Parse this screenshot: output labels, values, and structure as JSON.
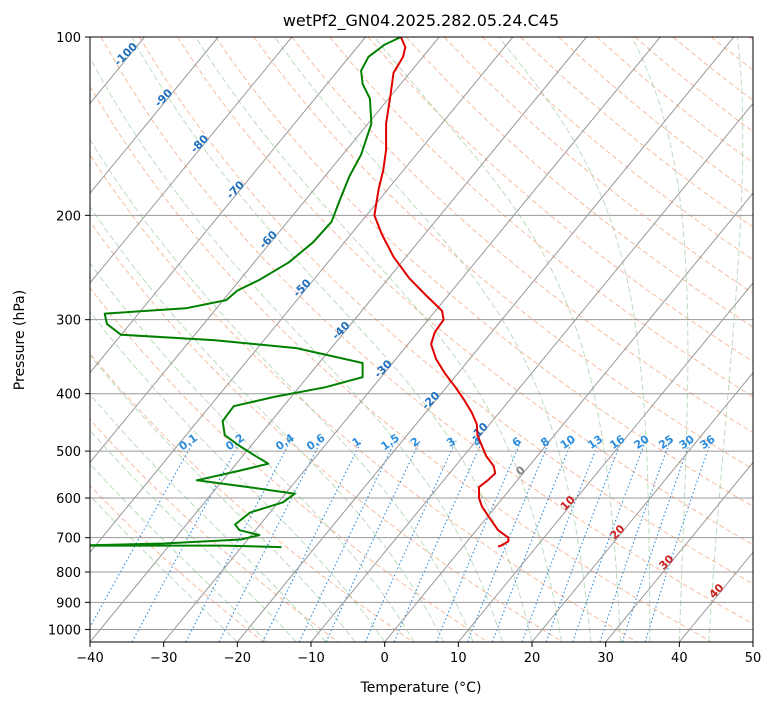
{
  "chart_data": {
    "type": "line",
    "title": "wetPf2_GN04.2025.282.05.24.C45",
    "xlabel": "Temperature (°C)",
    "ylabel": "Pressure (hPa)",
    "xlim": [
      -40,
      50
    ],
    "ylim": [
      1050,
      100
    ],
    "y_scale": "log",
    "x_ticks": [
      -40,
      -30,
      -20,
      -10,
      0,
      10,
      20,
      30,
      40,
      50
    ],
    "y_ticks": [
      1000,
      900,
      800,
      700,
      600,
      500,
      400,
      300,
      200,
      100
    ],
    "grid": true,
    "skew_per_decade": 66,
    "colors": {
      "temperature": "#e00000",
      "dewpoint": "#008000",
      "isotherm": "#999999",
      "dry_adiabat": "#f4a582",
      "moist_adiabat": "#9fcf9f",
      "mixing_ratio": "#2b8cde",
      "isotherm_label": "#1f6fbf",
      "isotherm_label_warm": "#cc2020"
    },
    "series": [
      {
        "key": "temperature",
        "points": [
          [
            2.2,
            100
          ],
          [
            2.8,
            104
          ],
          [
            2.5,
            108
          ],
          [
            1.2,
            115
          ],
          [
            0.8,
            125
          ],
          [
            0.2,
            140
          ],
          [
            0.2,
            155
          ],
          [
            -0.2,
            168
          ],
          [
            -0.8,
            180
          ],
          [
            -1.4,
            200
          ],
          [
            -0.4,
            215
          ],
          [
            1.2,
            235
          ],
          [
            3.3,
            255
          ],
          [
            5.5,
            272
          ],
          [
            7.8,
            290
          ],
          [
            8.0,
            300
          ],
          [
            6.8,
            315
          ],
          [
            6.3,
            330
          ],
          [
            7.0,
            350
          ],
          [
            8.2,
            370
          ],
          [
            9.6,
            390
          ],
          [
            10.8,
            410
          ],
          [
            11.8,
            430
          ],
          [
            12.5,
            450
          ],
          [
            12.6,
            470
          ],
          [
            13.2,
            490
          ],
          [
            13.8,
            510
          ],
          [
            14.8,
            530
          ],
          [
            15.0,
            545
          ],
          [
            14.0,
            560
          ],
          [
            12.8,
            575
          ],
          [
            12.8,
            600
          ],
          [
            13.2,
            620
          ],
          [
            14.3,
            650
          ],
          [
            15.4,
            680
          ],
          [
            16.8,
            700
          ],
          [
            16.8,
            710
          ],
          [
            16.0,
            720
          ],
          [
            15.4,
            725
          ]
        ]
      },
      {
        "key": "dewpoint",
        "points": [
          [
            2.2,
            100
          ],
          [
            0,
            103
          ],
          [
            -2.2,
            108
          ],
          [
            -3.2,
            114
          ],
          [
            -3.0,
            120
          ],
          [
            -2.0,
            127
          ],
          [
            -1.8,
            140
          ],
          [
            -3.2,
            158
          ],
          [
            -4.8,
            172
          ],
          [
            -6.2,
            190
          ],
          [
            -7.2,
            205
          ],
          [
            -9.7,
            222
          ],
          [
            -13,
            240
          ],
          [
            -17,
            257
          ],
          [
            -20,
            268
          ],
          [
            -21.5,
            278
          ],
          [
            -27,
            287
          ],
          [
            -38,
            293
          ],
          [
            -37.7,
            305
          ],
          [
            -35.8,
            318
          ],
          [
            -23,
            325
          ],
          [
            -12,
            335
          ],
          [
            -3,
            355
          ],
          [
            -3,
            375
          ],
          [
            -8,
            390
          ],
          [
            -15,
            405
          ],
          [
            -20.5,
            420
          ],
          [
            -22,
            445
          ],
          [
            -21.7,
            470
          ],
          [
            -19.7,
            490
          ],
          [
            -17.5,
            510
          ],
          [
            -15.8,
            525
          ],
          [
            -19.8,
            540
          ],
          [
            -25.5,
            560
          ],
          [
            -18.5,
            575
          ],
          [
            -12.2,
            590
          ],
          [
            -13.8,
            610
          ],
          [
            -18.3,
            635
          ],
          [
            -20.3,
            665
          ],
          [
            -19.7,
            680
          ],
          [
            -17,
            693
          ],
          [
            -19.5,
            705
          ],
          [
            -30,
            716
          ],
          [
            -42,
            722
          ],
          [
            -22,
            722
          ],
          [
            -14,
            726
          ]
        ]
      }
    ],
    "isotherm_labels": {
      "cold": [
        "-100",
        "-90",
        "-80",
        "-70",
        "-60",
        "-50",
        "-40",
        "-30",
        "-20",
        "-10"
      ],
      "zero": "0",
      "warm": [
        "10",
        "20",
        "30",
        "40"
      ]
    },
    "mixing_ratio_labels": [
      "0.1",
      "0.2",
      "0.4",
      "0.6",
      "1",
      "1.5",
      "2",
      "3",
      "4",
      "6",
      "8",
      "10",
      "13",
      "16",
      "20",
      "25",
      "30",
      "36"
    ]
  }
}
